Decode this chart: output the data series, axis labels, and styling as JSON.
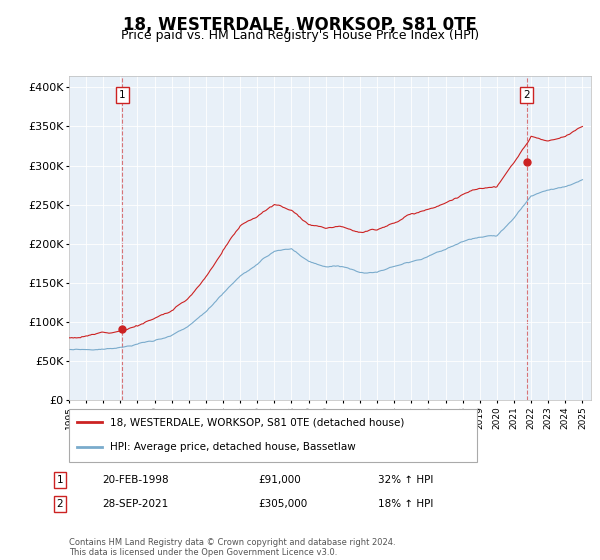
{
  "title": "18, WESTERDALE, WORKSOP, S81 0TE",
  "subtitle": "Price paid vs. HM Land Registry's House Price Index (HPI)",
  "ylabel_ticks": [
    "£0",
    "£50K",
    "£100K",
    "£150K",
    "£200K",
    "£250K",
    "£300K",
    "£350K",
    "£400K"
  ],
  "ytick_values": [
    0,
    50000,
    100000,
    150000,
    200000,
    250000,
    300000,
    350000,
    400000
  ],
  "ylim": [
    0,
    415000
  ],
  "xlim_start": 1995.0,
  "xlim_end": 2025.5,
  "red_line_color": "#cc2222",
  "blue_line_color": "#7aabcc",
  "bg_color": "#e8f0f8",
  "legend_label_red": "18, WESTERDALE, WORKSOP, S81 0TE (detached house)",
  "legend_label_blue": "HPI: Average price, detached house, Bassetlaw",
  "marker1_x": 1998.12,
  "marker1_y": 91000,
  "marker2_x": 2021.74,
  "marker2_y": 305000,
  "annotation1": "1",
  "annotation2": "2",
  "table_rows": [
    {
      "num": "1",
      "date": "20-FEB-1998",
      "price": "£91,000",
      "hpi": "32% ↑ HPI"
    },
    {
      "num": "2",
      "date": "28-SEP-2021",
      "price": "£305,000",
      "hpi": "18% ↑ HPI"
    }
  ],
  "footer": "Contains HM Land Registry data © Crown copyright and database right 2024.\nThis data is licensed under the Open Government Licence v3.0.",
  "title_fontsize": 12,
  "subtitle_fontsize": 9,
  "tick_fontsize": 8
}
